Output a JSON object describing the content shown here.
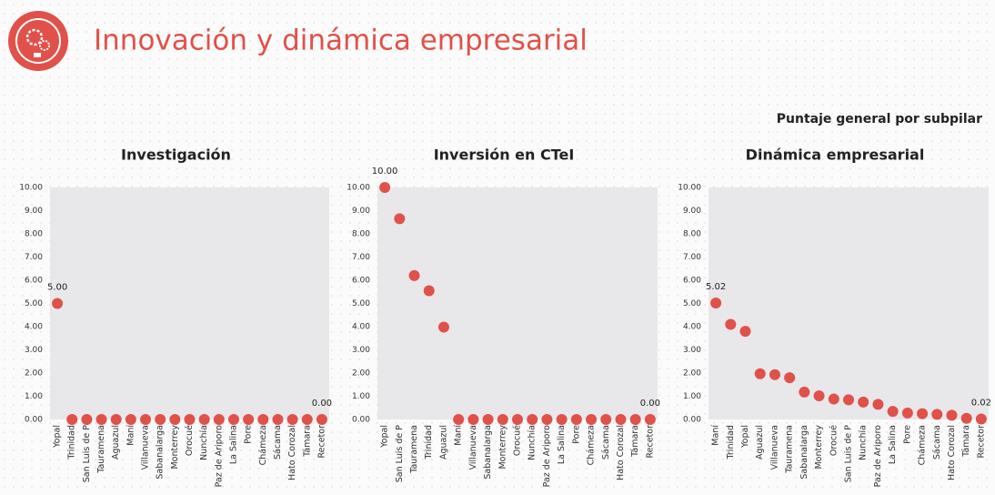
{
  "header": {
    "title": "Innovación y dinámica empresarial",
    "subtitle": "Puntaje general por subpilar"
  },
  "chart_data": [
    {
      "type": "dot",
      "title": "Investigación",
      "color": "#e0514a",
      "categories": [
        "Yopal",
        "Trinidad",
        "San Luis de P",
        "Tauramena",
        "Aguazul",
        "Maní",
        "Villanueva",
        "Sabanalarga",
        "Monterrey",
        "Orocué",
        "Nunchía",
        "Paz de Ariporo",
        "La Salina",
        "Pore",
        "Chámeza",
        "Sácama",
        "Hato Corozal",
        "Támara",
        "Recetor"
      ],
      "values": [
        5,
        0,
        0,
        0,
        0,
        0,
        0,
        0,
        0,
        0,
        0,
        0,
        0,
        0,
        0,
        0,
        0,
        0,
        0
      ],
      "value_labels": [
        "5.00",
        null,
        null,
        null,
        null,
        null,
        null,
        null,
        null,
        null,
        null,
        null,
        null,
        null,
        null,
        null,
        null,
        null,
        "0.00"
      ],
      "ylim": [
        0,
        10
      ],
      "yticks": [
        {
          "value": 0,
          "label": "0.00"
        },
        {
          "value": 1,
          "label": "1.00"
        },
        {
          "value": 2,
          "label": "2.00"
        },
        {
          "value": 3,
          "label": "3.00"
        },
        {
          "value": 4,
          "label": "4.00"
        },
        {
          "value": 5,
          "label": "5.00"
        },
        {
          "value": 6,
          "label": "6.00"
        },
        {
          "value": 7,
          "label": "7.00"
        },
        {
          "value": 8,
          "label": "8.00"
        },
        {
          "value": 9,
          "label": "9.00"
        },
        {
          "value": 10,
          "label": "10.00"
        }
      ]
    },
    {
      "type": "dot",
      "title": "Inversión en CTeI",
      "color": "#e0514a",
      "categories": [
        "Yopal",
        "San Luis de P",
        "Tauramena",
        "Trinidad",
        "Aguazul",
        "Maní",
        "Villanueva",
        "Sabanalarga",
        "Monterrey",
        "Orocué",
        "Nunchía",
        "Paz de Ariporo",
        "La Salina",
        "Pore",
        "Chámeza",
        "Sácama",
        "Hato Corozal",
        "Támara",
        "Recetor"
      ],
      "values": [
        10,
        8.65,
        6.2,
        5.55,
        3.98,
        0,
        0,
        0,
        0,
        0,
        0,
        0,
        0,
        0,
        0,
        0,
        0,
        0,
        0
      ],
      "value_labels": [
        "10.00",
        null,
        null,
        null,
        null,
        null,
        null,
        null,
        null,
        null,
        null,
        null,
        null,
        null,
        null,
        null,
        null,
        null,
        "0.00"
      ],
      "ylim": [
        0,
        10
      ],
      "yticks": [
        {
          "value": 0,
          "label": "0.00"
        },
        {
          "value": 1,
          "label": "1.00"
        },
        {
          "value": 2,
          "label": "2.00"
        },
        {
          "value": 3,
          "label": "3.00"
        },
        {
          "value": 4,
          "label": "4.00"
        },
        {
          "value": 5,
          "label": "5.00"
        },
        {
          "value": 6,
          "label": "6.00"
        },
        {
          "value": 7,
          "label": "7.00"
        },
        {
          "value": 8,
          "label": "8.00"
        },
        {
          "value": 9,
          "label": "9.00"
        },
        {
          "value": 10,
          "label": "10.00"
        }
      ]
    },
    {
      "type": "dot",
      "title": "Dinámica empresarial",
      "color": "#e0514a",
      "categories": [
        "Maní",
        "Trinidad",
        "Yopal",
        "Aguazul",
        "Villanueva",
        "Tauramena",
        "Sabanalarga",
        "Monterrey",
        "Orocué",
        "San Luis de P",
        "Nunchía",
        "Paz de Ariporo",
        "La Salina",
        "Pore",
        "Chámeza",
        "Sácama",
        "Hato Corozal",
        "Támara",
        "Recetor"
      ],
      "values": [
        5.02,
        4.1,
        3.8,
        1.97,
        1.93,
        1.8,
        1.18,
        1.02,
        0.88,
        0.85,
        0.75,
        0.65,
        0.35,
        0.28,
        0.25,
        0.22,
        0.18,
        0.05,
        0.02
      ],
      "value_labels": [
        "5.02",
        null,
        null,
        null,
        null,
        null,
        null,
        null,
        null,
        null,
        null,
        null,
        null,
        null,
        null,
        null,
        null,
        null,
        "0.02"
      ],
      "ylim": [
        0,
        10
      ],
      "yticks": [
        {
          "value": 0,
          "label": "0.00"
        },
        {
          "value": 1,
          "label": "1.00"
        },
        {
          "value": 2,
          "label": "2.00"
        },
        {
          "value": 3,
          "label": "3.00"
        },
        {
          "value": 4,
          "label": "4.00"
        },
        {
          "value": 5,
          "label": "5.00"
        },
        {
          "value": 6,
          "label": "6.00"
        },
        {
          "value": 7,
          "label": "7.00"
        },
        {
          "value": 8,
          "label": "8.00"
        },
        {
          "value": 9,
          "label": "9.00"
        },
        {
          "value": 10,
          "label": "10.00"
        }
      ]
    }
  ]
}
